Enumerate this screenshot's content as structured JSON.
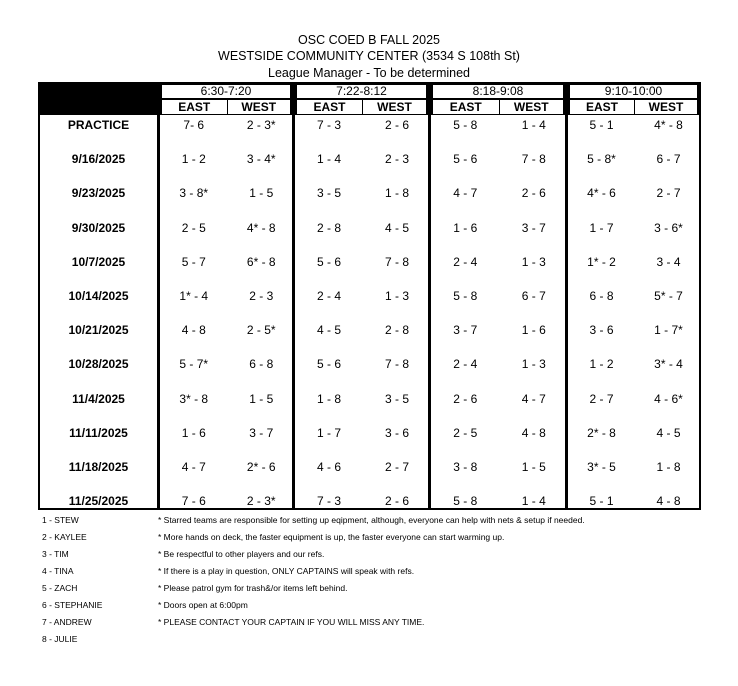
{
  "title": {
    "line1": "OSC COED B FALL 2025",
    "line2": "WESTSIDE COMMUNITY CENTER (3534 S 108th St)",
    "line3": "League Manager - To be determined"
  },
  "slots": [
    {
      "time": "6:30-7:20",
      "east": "EAST",
      "west": "WEST"
    },
    {
      "time": "7:22-8:12",
      "east": "EAST",
      "west": "WEST"
    },
    {
      "time": "8:18-9:08",
      "east": "EAST",
      "west": "WEST"
    },
    {
      "time": "9:10-10:00",
      "east": "EAST",
      "west": "WEST"
    }
  ],
  "rows": [
    {
      "date": "PRACTICE",
      "games": [
        "7- 6",
        "2 - 3*",
        "7 - 3",
        "2 - 6",
        "5 - 8",
        "1 - 4",
        "5 - 1",
        "4* - 8"
      ]
    },
    {
      "date": "9/16/2025",
      "games": [
        "1 - 2",
        "3 - 4*",
        "1 - 4",
        "2 - 3",
        "5 - 6",
        "7 - 8",
        "5 - 8*",
        "6 - 7"
      ]
    },
    {
      "date": "9/23/2025",
      "games": [
        "3 - 8*",
        "1 - 5",
        "3 - 5",
        "1 - 8",
        "4 - 7",
        "2 - 6",
        "4* - 6",
        "2 - 7"
      ]
    },
    {
      "date": "9/30/2025",
      "games": [
        "2 - 5",
        "4* - 8",
        "2 - 8",
        "4 - 5",
        "1 - 6",
        "3 - 7",
        "1 - 7",
        "3 - 6*"
      ]
    },
    {
      "date": "10/7/2025",
      "games": [
        "5 - 7",
        "6* - 8",
        "5 - 6",
        "7 - 8",
        "2 - 4",
        "1 - 3",
        "1* - 2",
        "3 - 4"
      ]
    },
    {
      "date": "10/14/2025",
      "games": [
        "1* - 4",
        "2 - 3",
        "2 - 4",
        "1 - 3",
        "5 - 8",
        "6 - 7",
        "6 - 8",
        "5* - 7"
      ]
    },
    {
      "date": "10/21/2025",
      "games": [
        "4 - 8",
        "2 - 5*",
        "4 - 5",
        "2 - 8",
        "3 - 7",
        "1 - 6",
        "3 - 6",
        "1 - 7*"
      ]
    },
    {
      "date": "10/28/2025",
      "games": [
        "5 - 7*",
        "6 - 8",
        "5 - 6",
        "7 - 8",
        "2 - 4",
        "1 - 3",
        "1 - 2",
        "3* - 4"
      ]
    },
    {
      "date": "11/4/2025",
      "games": [
        "3* - 8",
        "1 - 5",
        "1 - 8",
        "3 - 5",
        "2 - 6",
        "4 - 7",
        "2 - 7",
        "4 - 6*"
      ]
    },
    {
      "date": "11/11/2025",
      "games": [
        "1 - 6",
        "3 - 7",
        "1 - 7",
        "3 - 6",
        "2 - 5",
        "4 - 8",
        "2* - 8",
        "4 - 5"
      ]
    },
    {
      "date": "11/18/2025",
      "games": [
        "4 - 7",
        "2* - 6",
        "4 - 6",
        "2 - 7",
        "3 - 8",
        "1 - 5",
        "3* - 5",
        "1 - 8"
      ]
    },
    {
      "date": "11/25/2025",
      "games": [
        "7 - 6",
        "2 - 3*",
        "7 - 3",
        "2 - 6",
        "5 - 8",
        "1 - 4",
        "5 - 1",
        "4 - 8"
      ]
    }
  ],
  "teams": [
    "1 - STEW",
    "2 - KAYLEE",
    "3 - TIM",
    "4 - TINA",
    "5 - ZACH",
    "6 - STEPHANIE",
    "7 - ANDREW",
    "8 - JULIE"
  ],
  "notes": [
    "* Starred teams are responsible for setting up eqipment, although, everyone can help with nets & setup if needed.",
    "* More hands on deck, the faster equipment is up, the faster everyone can start warming up.",
    "* Be respectful to other players and our refs.",
    "* If there is a play in question, ONLY CAPTAINS will speak with refs.",
    "* Please patrol gym for trash&/or items left behind.",
    "* Doors open at 6:00pm",
    "* PLEASE CONTACT YOUR CAPTAIN IF YOU WILL MISS ANY TIME."
  ]
}
